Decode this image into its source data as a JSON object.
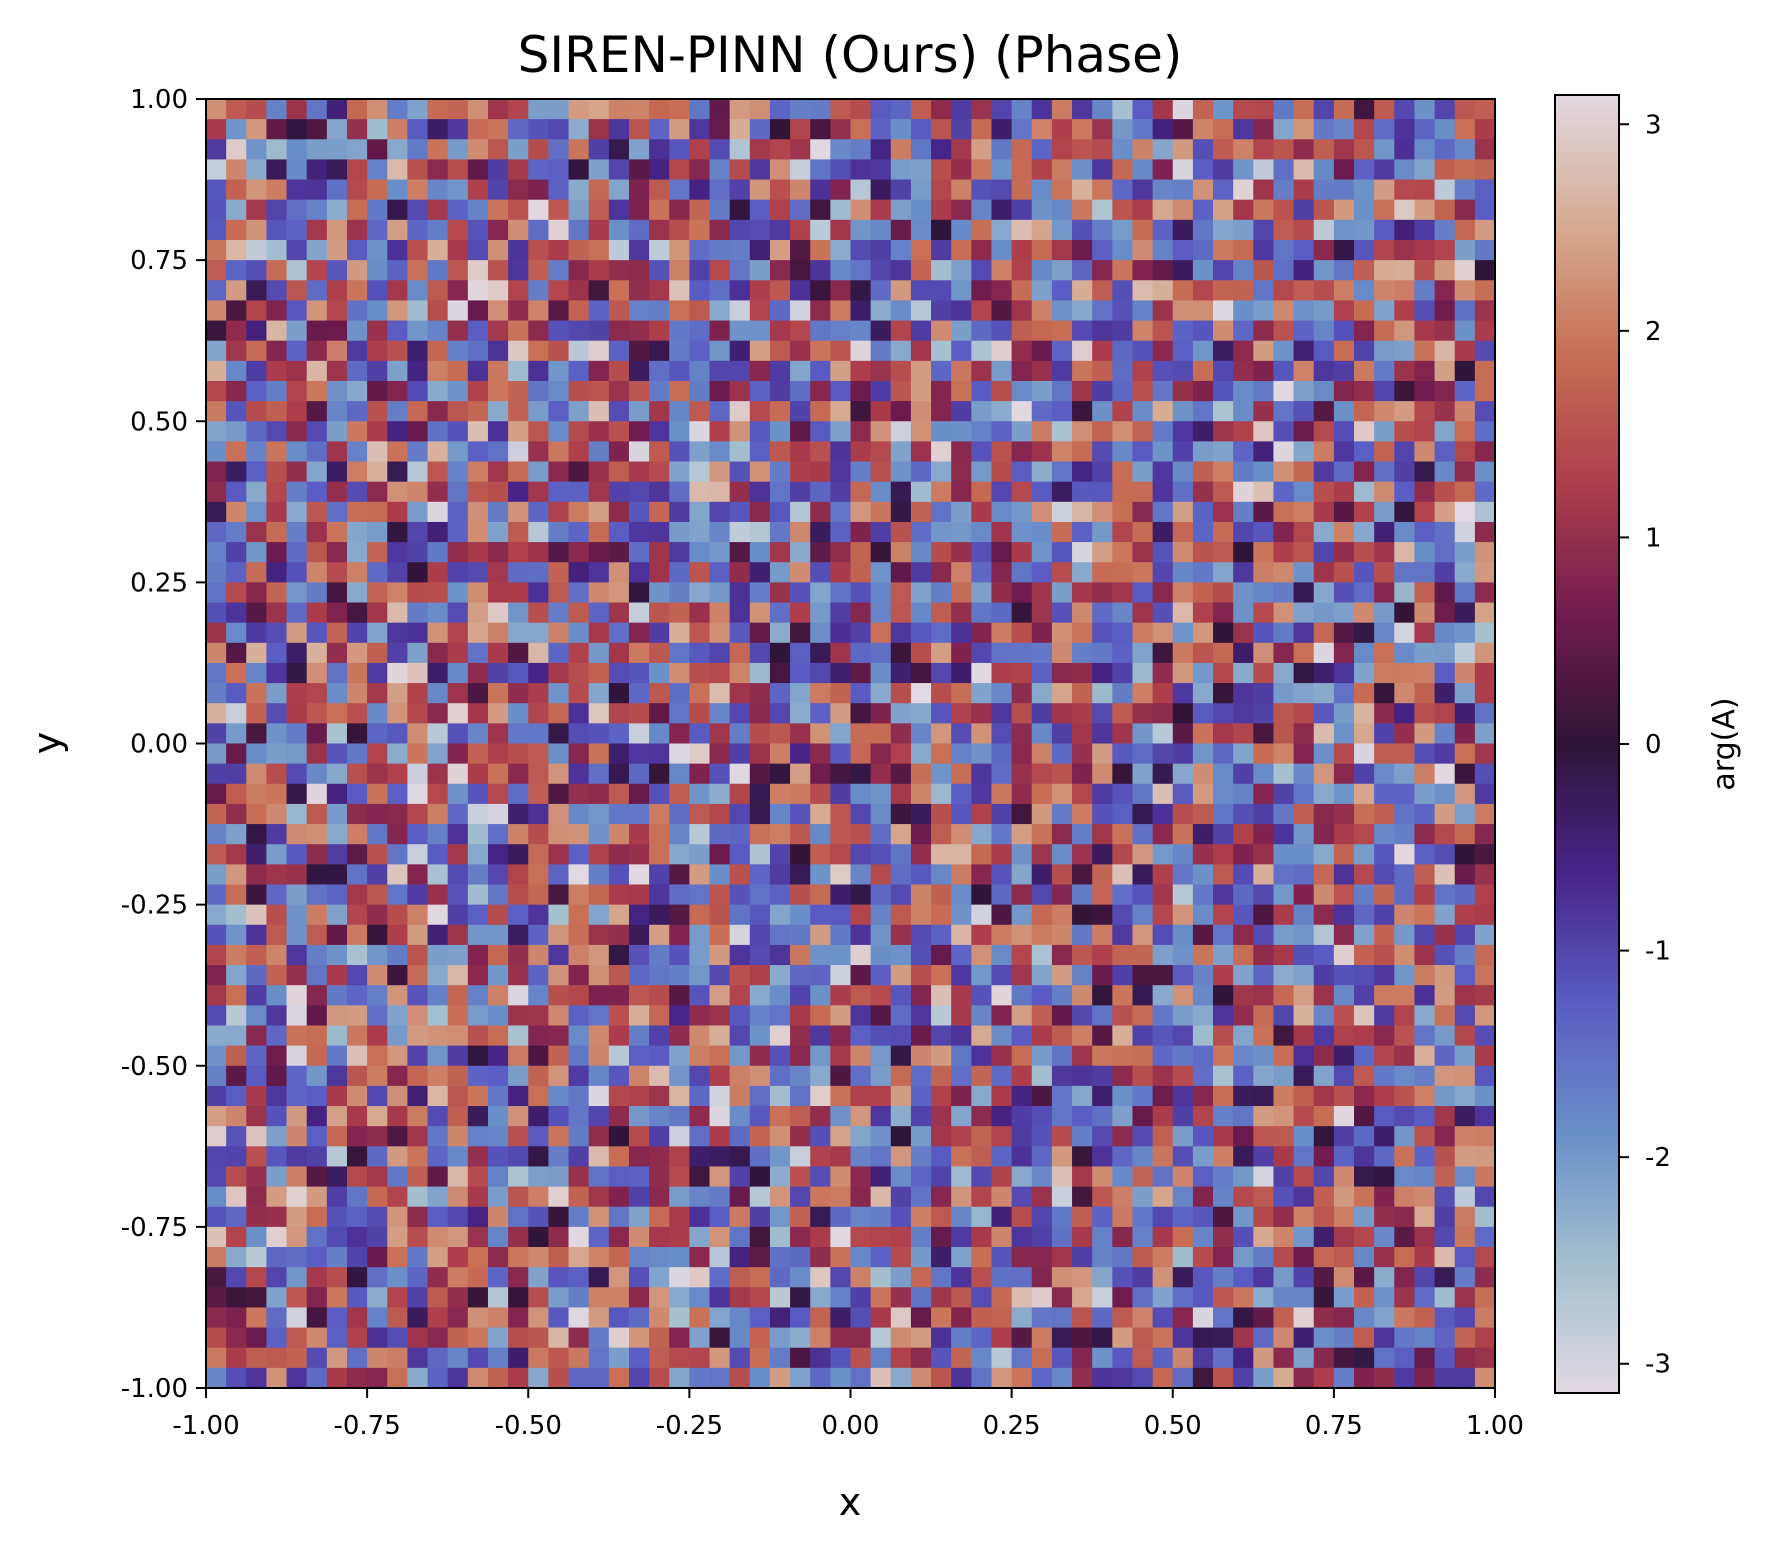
{
  "chart_data": {
    "type": "heatmap",
    "title": "SIREN-PINN (Ours) (Phase)",
    "xlabel": "x",
    "ylabel": "y",
    "xlim": [
      -1.0,
      1.0
    ],
    "ylim": [
      -1.0,
      1.0
    ],
    "x_ticks": [
      "-1.00",
      "-0.75",
      "-0.50",
      "-0.25",
      "0.00",
      "0.25",
      "0.50",
      "0.75",
      "1.00"
    ],
    "y_ticks": [
      "-1.00",
      "-0.75",
      "-0.50",
      "-0.25",
      "0.00",
      "0.25",
      "0.50",
      "0.75",
      "1.00"
    ],
    "grid_size": [
      64,
      64
    ],
    "value_range": [
      -3.14159,
      3.14159
    ],
    "colormap": "twilight_shifted",
    "colormap_stops": [
      "#e2d9e2",
      "#a3bfcf",
      "#6a8fc8",
      "#5a5cc3",
      "#47248a",
      "#2f1437",
      "#711b4f",
      "#ad3d4b",
      "#c86f56",
      "#d6ab92",
      "#e2d9e2"
    ],
    "field_description": "phase values appear spatially uncorrelated (noise-like) across the whole domain",
    "colorbar": {
      "label": "arg(A)",
      "ticks": [
        "-3",
        "-2",
        "-1",
        "0",
        "1",
        "2",
        "3"
      ],
      "tick_values": [
        -3,
        -2,
        -1,
        0,
        1,
        2,
        3
      ]
    }
  }
}
